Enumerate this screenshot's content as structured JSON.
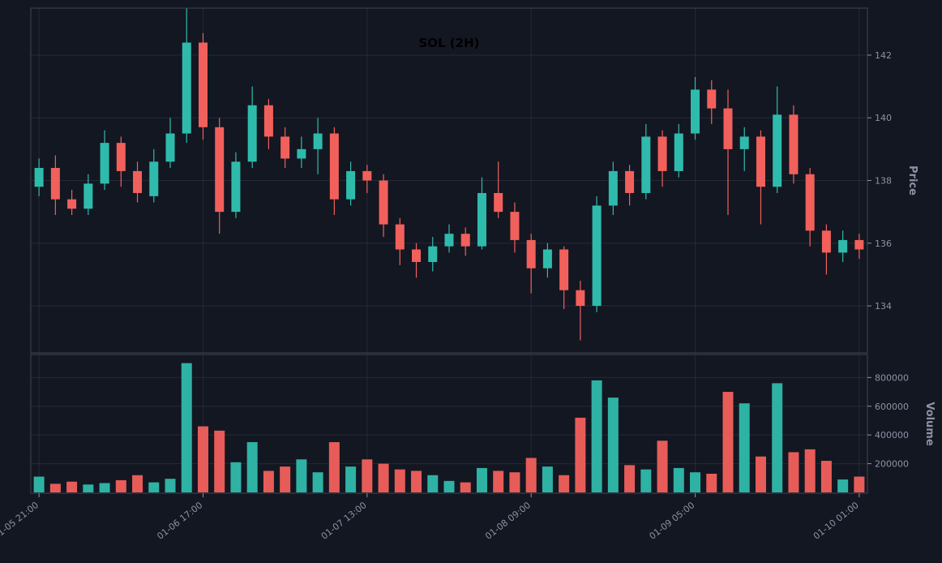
{
  "colors": {
    "background": "#131722",
    "up": "#2fbbac",
    "down": "#f2605c",
    "grid": "#8892a626",
    "border": "#3e4553",
    "tick_label": "#8b93a4",
    "axis_label": "#8b93a4",
    "title": "#000000"
  },
  "chart_data": {
    "type": "candlestick",
    "title": "SOL (2H)",
    "symbol": "SOL",
    "interval": "2H",
    "legend_position": "none",
    "grid": true,
    "x_tick_labels": [
      "01-05 21:00",
      "01-06 17:00",
      "01-07 13:00",
      "01-08 09:00",
      "01-09 05:00",
      "01-10 01:00"
    ],
    "x_tick_indices": [
      0,
      10,
      20,
      30,
      40,
      50
    ],
    "price_axis": {
      "label": "Price",
      "ticks": [
        134,
        136,
        138,
        140,
        142
      ],
      "min": 132.5,
      "max": 143.5
    },
    "volume_axis": {
      "label": "Volume",
      "ticks": [
        200000,
        400000,
        600000,
        800000
      ],
      "min": 0,
      "max": 960000
    },
    "candles_format": [
      "open",
      "high",
      "low",
      "close",
      "volume"
    ],
    "candles": [
      [
        137.8,
        138.7,
        137.5,
        138.4,
        110000
      ],
      [
        138.4,
        138.8,
        136.9,
        137.4,
        60000
      ],
      [
        137.4,
        137.7,
        136.9,
        137.1,
        75000
      ],
      [
        137.1,
        138.2,
        136.9,
        137.9,
        55000
      ],
      [
        137.9,
        139.6,
        137.7,
        139.2,
        65000
      ],
      [
        139.2,
        139.4,
        137.8,
        138.3,
        85000
      ],
      [
        138.3,
        138.6,
        137.3,
        137.6,
        120000
      ],
      [
        137.5,
        139.0,
        137.3,
        138.6,
        70000
      ],
      [
        138.6,
        140.0,
        138.4,
        139.5,
        95000
      ],
      [
        139.5,
        143.5,
        139.2,
        142.4,
        900000
      ],
      [
        142.4,
        142.7,
        139.3,
        139.7,
        460000
      ],
      [
        139.7,
        140.0,
        136.3,
        137.0,
        430000
      ],
      [
        137.0,
        138.9,
        136.8,
        138.6,
        210000
      ],
      [
        138.6,
        141.0,
        138.4,
        140.4,
        350000
      ],
      [
        140.4,
        140.6,
        139.0,
        139.4,
        150000
      ],
      [
        139.4,
        139.7,
        138.4,
        138.7,
        180000
      ],
      [
        138.7,
        139.4,
        138.4,
        139.0,
        230000
      ],
      [
        139.0,
        140.0,
        138.2,
        139.5,
        140000
      ],
      [
        139.5,
        139.7,
        136.9,
        137.4,
        350000
      ],
      [
        137.4,
        138.6,
        137.2,
        138.3,
        180000
      ],
      [
        138.3,
        138.5,
        137.6,
        138.0,
        230000
      ],
      [
        138.0,
        138.2,
        136.2,
        136.6,
        200000
      ],
      [
        136.6,
        136.8,
        135.3,
        135.8,
        160000
      ],
      [
        135.8,
        136.0,
        134.9,
        135.4,
        150000
      ],
      [
        135.4,
        136.2,
        135.1,
        135.9,
        120000
      ],
      [
        135.9,
        136.6,
        135.7,
        136.3,
        80000
      ],
      [
        136.3,
        136.5,
        135.6,
        135.9,
        70000
      ],
      [
        135.9,
        138.1,
        135.8,
        137.6,
        170000
      ],
      [
        137.6,
        138.6,
        136.8,
        137.0,
        150000
      ],
      [
        137.0,
        137.3,
        135.7,
        136.1,
        140000
      ],
      [
        136.1,
        136.3,
        134.4,
        135.2,
        240000
      ],
      [
        135.2,
        136.0,
        134.9,
        135.8,
        180000
      ],
      [
        135.8,
        135.9,
        133.9,
        134.5,
        120000
      ],
      [
        134.5,
        134.8,
        132.9,
        134.0,
        520000
      ],
      [
        134.0,
        137.5,
        133.8,
        137.2,
        780000
      ],
      [
        137.2,
        138.6,
        136.9,
        138.3,
        660000
      ],
      [
        138.3,
        138.5,
        137.2,
        137.6,
        190000
      ],
      [
        137.6,
        139.8,
        137.4,
        139.4,
        160000
      ],
      [
        139.4,
        139.6,
        137.8,
        138.3,
        360000
      ],
      [
        138.3,
        139.8,
        138.1,
        139.5,
        170000
      ],
      [
        139.5,
        141.3,
        139.3,
        140.9,
        140000
      ],
      [
        140.9,
        141.2,
        139.8,
        140.3,
        130000
      ],
      [
        140.3,
        140.9,
        136.9,
        139.0,
        700000
      ],
      [
        139.0,
        139.7,
        138.3,
        139.4,
        620000
      ],
      [
        139.4,
        139.6,
        136.6,
        137.8,
        250000
      ],
      [
        137.8,
        141.0,
        137.6,
        140.1,
        760000
      ],
      [
        140.1,
        140.4,
        137.9,
        138.2,
        280000
      ],
      [
        138.2,
        138.4,
        135.9,
        136.4,
        300000
      ],
      [
        136.4,
        136.6,
        135.0,
        135.7,
        220000
      ],
      [
        135.7,
        136.4,
        135.4,
        136.1,
        90000
      ],
      [
        136.1,
        136.3,
        135.5,
        135.8,
        110000
      ]
    ]
  }
}
